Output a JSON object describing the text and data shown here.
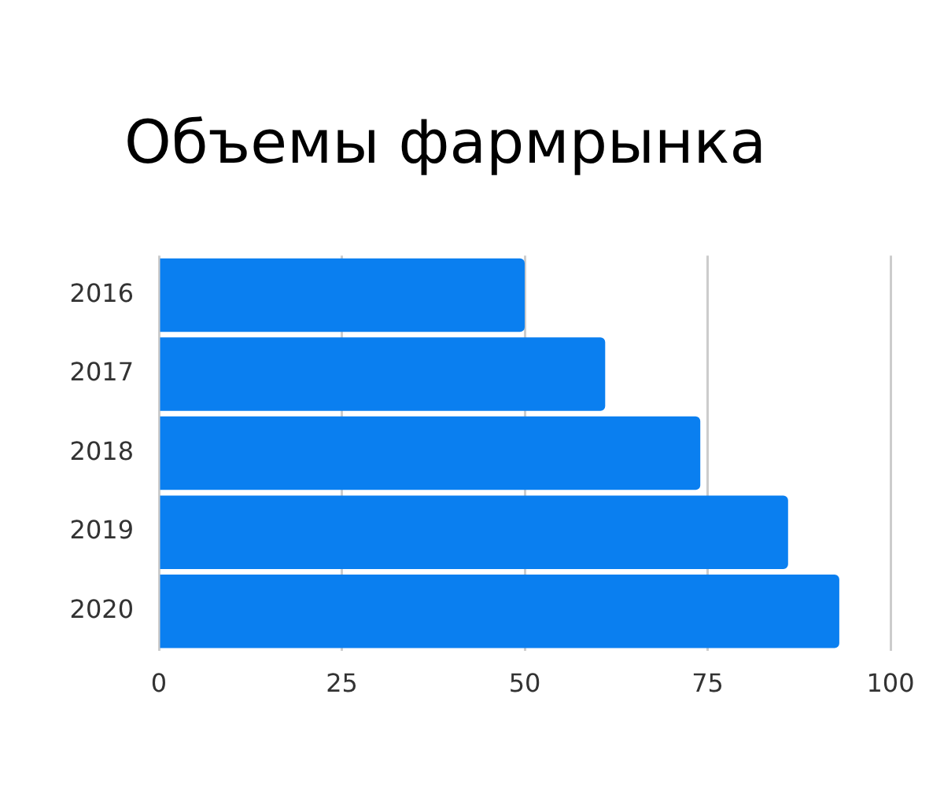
{
  "chart_data": {
    "type": "bar",
    "orientation": "horizontal",
    "title": "Объемы фармрынка",
    "categories": [
      "2016",
      "2017",
      "2018",
      "2019",
      "2020"
    ],
    "values": [
      50,
      61,
      74,
      86,
      93
    ],
    "color": "#0a7ff0",
    "xlim": [
      0,
      100
    ],
    "xticks": [
      0,
      25,
      50,
      75,
      100
    ],
    "grid": "x"
  }
}
